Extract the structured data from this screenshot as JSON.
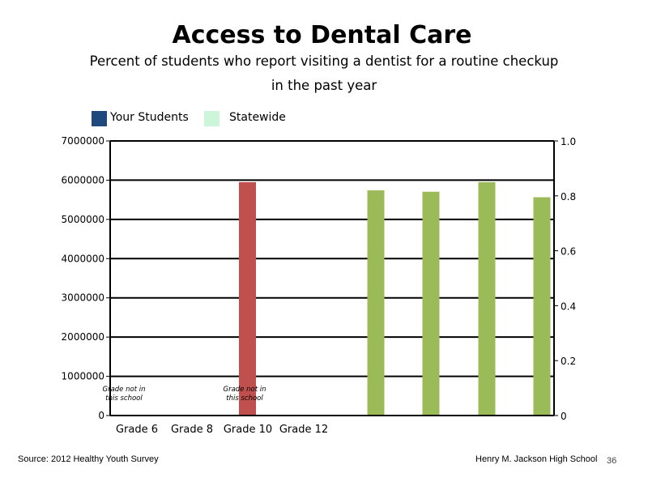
{
  "slide": {
    "title": "Access to Dental Care",
    "subtitle_line1": "Percent of students who report visiting a dentist for a routine checkup",
    "subtitle_line2": "in the past year",
    "source": "Source: 2012 Healthy Youth Survey",
    "school": "Henry M. Jackson High School",
    "page_number": "36"
  },
  "legend": {
    "items": [
      {
        "label": "Your Students",
        "color": "#1f497d"
      },
      {
        "label": "Statewide",
        "color": "#ccf5d9"
      }
    ]
  },
  "chart_data": {
    "type": "bar",
    "categories": [
      "Grade 6",
      "Grade 8",
      "Grade 10",
      "Grade 12"
    ],
    "left_axis": {
      "ylim": [
        0,
        7000000
      ],
      "ticks": [
        "0",
        "1000000",
        "2000000",
        "3000000",
        "4000000",
        "5000000",
        "6000000",
        "7000000"
      ]
    },
    "right_axis": {
      "ylim": [
        0,
        1.0
      ],
      "ticks": [
        "0",
        "0.2",
        "0.4",
        "0.6",
        "0.8",
        "1.0"
      ]
    },
    "grid": true,
    "legend_position": "top-left",
    "left_bars": [
      {
        "category": "Grade 10",
        "value": 5950000,
        "color": "#c0504d"
      }
    ],
    "right_bars": [
      {
        "value": 0.82,
        "color": "#9bbb59"
      },
      {
        "value": 0.815,
        "color": "#9bbb59"
      },
      {
        "value": 0.85,
        "color": "#9bbb59"
      },
      {
        "value": 0.795,
        "color": "#9bbb59"
      }
    ],
    "annotations": [
      {
        "category": "Grade 6",
        "line1": "Grade not in",
        "line2": "this school"
      },
      {
        "category": "Grade 10",
        "line1": "Grade not in",
        "line2": "this school"
      }
    ]
  }
}
